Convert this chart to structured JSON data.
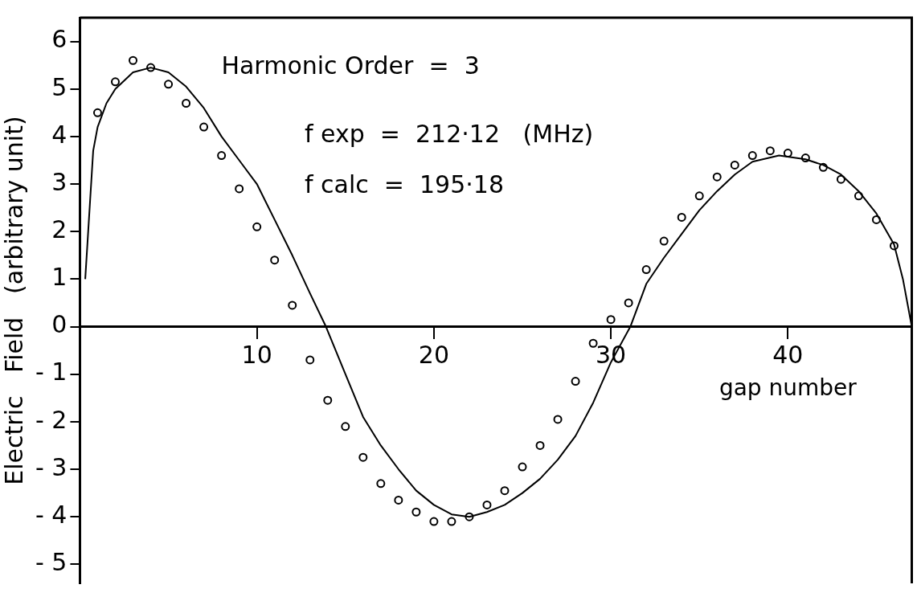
{
  "chart_data": {
    "type": "scatter",
    "xlabel": "gap number",
    "ylabel": "Electric   Field   (arbitrary unit)",
    "annotations": [
      "Harmonic Order  =  3",
      "f exp  =  212·12   (MHz)",
      "f calc  =  195·18"
    ],
    "xlim": [
      0,
      47
    ],
    "xticks": [
      10,
      20,
      30,
      40
    ],
    "ylim": [
      -5.4,
      6.5
    ],
    "yticks": [
      {
        "value": -5,
        "label": "- 5"
      },
      {
        "value": -4,
        "label": "- 4"
      },
      {
        "value": -3,
        "label": "- 3"
      },
      {
        "value": -2,
        "label": "- 2"
      },
      {
        "value": -1,
        "label": "- 1"
      },
      0,
      1,
      2,
      3,
      4,
      5,
      6
    ],
    "grid": false,
    "legend": false,
    "series": [
      {
        "type": "scatter",
        "color": "#000000",
        "marker": "circle",
        "x": [
          1,
          2,
          3,
          4,
          5,
          6,
          7,
          8,
          9,
          10,
          11,
          12,
          13,
          14,
          15,
          16,
          17,
          18,
          19,
          20,
          21,
          22,
          23,
          24,
          25,
          26,
          27,
          28,
          29,
          30,
          31,
          32,
          33,
          34,
          35,
          36,
          37,
          38,
          39,
          40,
          41,
          42,
          43,
          44,
          45,
          46
        ],
        "values": [
          4.5,
          5.15,
          5.6,
          5.45,
          5.1,
          4.7,
          4.2,
          3.6,
          2.9,
          2.1,
          1.4,
          0.45,
          -0.7,
          -1.55,
          -2.1,
          -2.75,
          -3.3,
          -3.65,
          -3.9,
          -4.1,
          -4.1,
          -4.0,
          -3.75,
          -3.45,
          -2.95,
          -2.5,
          -1.95,
          -1.15,
          -0.35,
          0.15,
          0.5,
          1.2,
          1.8,
          2.3,
          2.75,
          3.15,
          3.4,
          3.6,
          3.7,
          3.65,
          3.55,
          3.35,
          3.1,
          2.75,
          2.25,
          1.7
        ]
      },
      {
        "type": "line",
        "color": "#000000",
        "marker": "none",
        "line_style": "solid",
        "x": [
          0.3,
          0.5,
          0.75,
          1,
          1.5,
          2,
          3,
          4,
          5,
          6,
          7,
          8,
          9,
          10,
          11,
          12,
          13,
          13.9,
          15,
          16,
          17,
          18,
          19,
          20,
          21,
          22,
          23,
          24,
          25,
          26,
          27,
          28,
          29,
          30,
          31.1,
          32,
          33,
          34,
          35,
          36,
          37,
          38,
          39.5,
          41,
          42,
          43,
          44,
          45,
          46,
          46.5,
          47
        ],
        "values": [
          1.0,
          2.2,
          3.7,
          4.2,
          4.7,
          5.0,
          5.35,
          5.45,
          5.35,
          5.05,
          4.6,
          4.0,
          3.5,
          3.0,
          2.25,
          1.5,
          0.7,
          0,
          -1.0,
          -1.9,
          -2.5,
          -3.0,
          -3.45,
          -3.75,
          -3.95,
          -4.0,
          -3.9,
          -3.75,
          -3.5,
          -3.2,
          -2.8,
          -2.3,
          -1.6,
          -0.75,
          0,
          0.9,
          1.45,
          1.95,
          2.45,
          2.85,
          3.2,
          3.47,
          3.6,
          3.52,
          3.4,
          3.2,
          2.85,
          2.38,
          1.73,
          1.0,
          0
        ]
      }
    ]
  }
}
